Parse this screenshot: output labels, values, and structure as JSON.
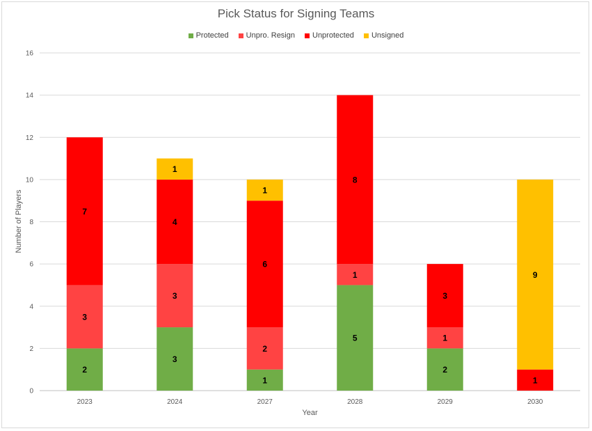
{
  "chart_data": {
    "type": "bar",
    "stacked": true,
    "title": "Pick Status for Signing Teams",
    "xlabel": "Year",
    "ylabel": "Number of Players",
    "categories": [
      "2023",
      "2024",
      "2027",
      "2028",
      "2029",
      "2030"
    ],
    "ylim": [
      0,
      16
    ],
    "yticks": [
      0,
      2,
      4,
      6,
      8,
      10,
      12,
      14,
      16
    ],
    "grid": true,
    "legend_position": "top",
    "series": [
      {
        "name": "Protected",
        "color": "#70ad47",
        "values": [
          2,
          3,
          1,
          5,
          2,
          0
        ]
      },
      {
        "name": "Unpro. Resign",
        "color": "#ff4343",
        "values": [
          3,
          3,
          2,
          1,
          1,
          0
        ]
      },
      {
        "name": "Unprotected",
        "color": "#ff0000",
        "values": [
          7,
          4,
          6,
          8,
          3,
          1
        ]
      },
      {
        "name": "Unsigned",
        "color": "#ffc000",
        "values": [
          0,
          1,
          1,
          0,
          0,
          9
        ]
      }
    ]
  }
}
